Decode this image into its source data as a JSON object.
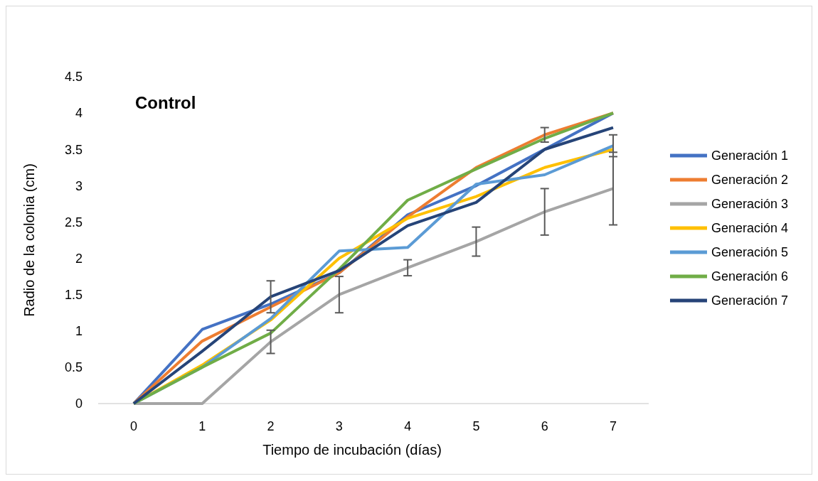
{
  "chart_data": {
    "type": "line",
    "title": "Control",
    "xlabel": "Tiempo de incubación (días)",
    "ylabel": "Radio de la colonia (cm)",
    "categories": [
      "0",
      "1",
      "2",
      "3",
      "4",
      "5",
      "6",
      "7"
    ],
    "series": [
      {
        "name": "Generación 1",
        "color": "#4472c4",
        "values": [
          0,
          1.02,
          1.37,
          1.8,
          2.6,
          3.0,
          3.5,
          4.0
        ]
      },
      {
        "name": "Generación 2",
        "color": "#ed7d31",
        "values": [
          0,
          0.86,
          1.33,
          1.8,
          2.57,
          3.25,
          3.7,
          4.0
        ],
        "errors": [
          null,
          null,
          null,
          null,
          null,
          null,
          0.1,
          null
        ]
      },
      {
        "name": "Generación 3",
        "color": "#a5a5a5",
        "values": [
          0,
          0,
          0.85,
          1.5,
          1.87,
          2.23,
          2.64,
          2.96
        ],
        "errors": [
          null,
          null,
          0.16,
          0.25,
          0.11,
          0.2,
          0.32,
          0.5
        ]
      },
      {
        "name": "Generación 4",
        "color": "#ffc000",
        "values": [
          0,
          0.53,
          1.15,
          2.0,
          2.55,
          2.85,
          3.25,
          3.5
        ]
      },
      {
        "name": "Generación 5",
        "color": "#5b9bd5",
        "values": [
          0,
          0.5,
          1.17,
          2.1,
          2.15,
          3.02,
          3.15,
          3.55
        ],
        "errors": [
          null,
          null,
          null,
          null,
          null,
          null,
          null,
          0.15
        ]
      },
      {
        "name": "Generación 6",
        "color": "#70ad47",
        "values": [
          0,
          0.5,
          0.97,
          1.85,
          2.8,
          3.23,
          3.65,
          4.0
        ]
      },
      {
        "name": "Generación 7",
        "color": "#264478",
        "values": [
          0,
          0.72,
          1.47,
          1.83,
          2.45,
          2.77,
          3.5,
          3.8
        ],
        "errors": [
          null,
          null,
          0.22,
          null,
          null,
          null,
          null,
          null
        ]
      }
    ],
    "ylim": [
      0,
      4.5
    ],
    "yticks": [
      0,
      0.5,
      1,
      1.5,
      2,
      2.5,
      3,
      3.5,
      4,
      4.5
    ],
    "grid": false,
    "legend": "right",
    "marker": "none",
    "line_style": "solid"
  }
}
